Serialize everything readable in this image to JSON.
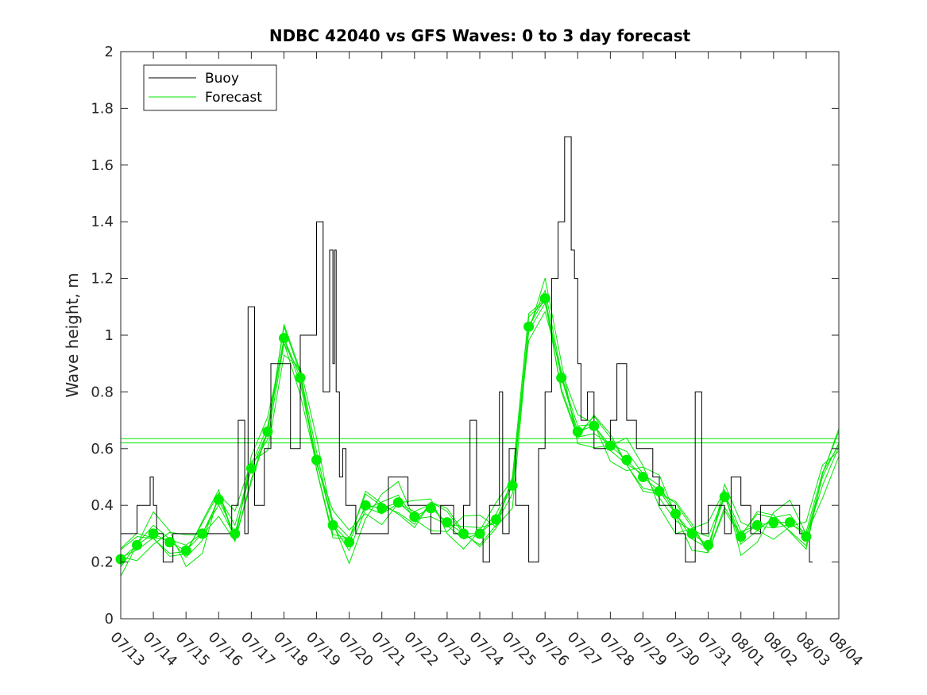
{
  "chart_data": {
    "type": "line",
    "title": "NDBC 42040 vs GFS Waves: 0 to 3 day forecast",
    "xlabel": "",
    "ylabel": "Wave height, m",
    "x_ticks": [
      "07/13",
      "07/14",
      "07/15",
      "07/16",
      "07/17",
      "07/18",
      "07/19",
      "07/20",
      "07/21",
      "07/22",
      "07/23",
      "07/24",
      "07/25",
      "07/26",
      "07/27",
      "07/28",
      "07/29",
      "07/30",
      "07/31",
      "08/01",
      "08/02",
      "08/03",
      "08/04"
    ],
    "xlim": [
      "07/13",
      "08/04"
    ],
    "ylim": [
      0,
      2
    ],
    "y_ticks": [
      0,
      0.2,
      0.4,
      0.6,
      0.8,
      1,
      1.2,
      1.4,
      1.6,
      1.8,
      2
    ],
    "legend": {
      "position": "top-left",
      "entries": [
        "Buoy",
        "Forecast"
      ]
    },
    "colors": {
      "buoy": "#000000",
      "forecast": "#00e600",
      "dots": "#00ee00",
      "axis": "#262626"
    },
    "series": [
      {
        "name": "Buoy",
        "x_days": [
          0,
          0.5,
          0.9,
          1.0,
          1.1,
          1.2,
          1.3,
          1.6,
          2.0,
          2.5,
          2.9,
          3.1,
          3.4,
          3.6,
          3.8,
          3.9,
          4.1,
          4.4,
          4.6,
          5.2,
          5.5,
          6.0,
          6.2,
          6.4,
          6.5,
          6.55,
          6.6,
          6.7,
          6.8,
          6.9,
          7.0,
          7.2,
          7.5,
          7.8,
          8.2,
          8.5,
          8.8,
          9.0,
          9.5,
          9.8,
          10.2,
          10.5,
          10.7,
          10.9,
          11.1,
          11.3,
          11.6,
          11.7,
          11.9,
          12.1,
          12.5,
          12.8,
          13.0,
          13.2,
          13.4,
          13.6,
          13.8,
          13.9,
          14.0,
          14.1,
          14.3,
          14.5,
          14.8,
          15.0,
          15.2,
          15.5,
          15.8,
          16.1,
          16.3,
          16.5,
          16.8,
          17.0,
          17.3,
          17.6,
          17.8,
          18.0,
          18.2,
          18.5,
          18.7,
          19.0,
          19.3,
          19.6,
          20.0,
          20.4,
          20.8,
          21.0,
          21.1,
          21.2
        ],
        "values": [
          0.3,
          0.4,
          0.5,
          0.4,
          0.3,
          0.3,
          0.2,
          0.3,
          0.3,
          0.3,
          0.3,
          0.3,
          0.4,
          0.7,
          0.3,
          1.1,
          0.4,
          0.6,
          0.9,
          0.6,
          1.0,
          1.4,
          0.8,
          1.3,
          0.9,
          1.3,
          0.8,
          0.5,
          0.6,
          0.4,
          0.4,
          0.3,
          0.3,
          0.3,
          0.5,
          0.5,
          0.4,
          0.4,
          0.3,
          0.4,
          0.3,
          0.4,
          0.7,
          0.3,
          0.2,
          0.4,
          0.8,
          0.3,
          0.6,
          0.4,
          0.2,
          0.6,
          0.8,
          1.2,
          1.4,
          1.7,
          1.3,
          1.2,
          0.9,
          0.7,
          0.8,
          0.6,
          0.6,
          0.7,
          0.9,
          0.7,
          0.6,
          0.6,
          0.5,
          0.4,
          0.4,
          0.3,
          0.2,
          0.8,
          0.3,
          0.4,
          0.4,
          0.3,
          0.5,
          0.4,
          0.3,
          0.4,
          0.4,
          0.4,
          0.3,
          0.3,
          0.2,
          0.2
        ]
      },
      {
        "name": "Forecast",
        "x_days": [
          0,
          0.5,
          1.0,
          1.5,
          2.0,
          2.5,
          3.0,
          3.5,
          4.0,
          4.5,
          5.0,
          5.5,
          6.0,
          6.5,
          7.0,
          7.5,
          8.0,
          8.5,
          9.0,
          9.5,
          10.0,
          10.5,
          11.0,
          11.5,
          12.0,
          12.5,
          13.0,
          13.5,
          14.0,
          14.5,
          15.0,
          15.5,
          16.0,
          16.5,
          17.0,
          17.5,
          18.0,
          18.5,
          19.0,
          19.5,
          20.0,
          20.5,
          21.0,
          21.5,
          22.0
        ],
        "values": [
          0.21,
          0.26,
          0.3,
          0.27,
          0.24,
          0.3,
          0.42,
          0.3,
          0.53,
          0.66,
          0.99,
          0.85,
          0.56,
          0.33,
          0.27,
          0.4,
          0.39,
          0.41,
          0.36,
          0.39,
          0.34,
          0.3,
          0.3,
          0.35,
          0.47,
          1.03,
          1.13,
          0.85,
          0.66,
          0.68,
          0.61,
          0.56,
          0.5,
          0.45,
          0.37,
          0.3,
          0.26,
          0.43,
          0.29,
          0.33,
          0.34,
          0.34,
          0.29,
          0.5,
          0.62
        ]
      }
    ],
    "forecast_analysis_points": {
      "x_days": [
        0,
        0.5,
        1.0,
        1.5,
        2.0,
        2.5,
        3.0,
        3.5,
        4.0,
        4.5,
        5.0,
        5.5,
        6.0,
        6.5,
        7.0,
        7.5,
        8.0,
        8.5,
        9.0,
        9.5,
        10.0,
        10.5,
        11.0,
        11.5,
        12.0,
        12.5,
        13.0,
        13.5,
        14.0,
        14.5,
        15.0,
        15.5,
        16.0,
        16.5,
        17.0,
        17.5,
        18.0,
        18.5,
        19.0,
        19.5,
        20.0,
        20.5,
        21.0
      ],
      "values": [
        0.21,
        0.26,
        0.3,
        0.27,
        0.24,
        0.3,
        0.42,
        0.3,
        0.53,
        0.66,
        0.99,
        0.85,
        0.56,
        0.33,
        0.27,
        0.4,
        0.39,
        0.41,
        0.36,
        0.39,
        0.34,
        0.3,
        0.3,
        0.35,
        0.47,
        1.03,
        1.13,
        0.85,
        0.66,
        0.68,
        0.61,
        0.56,
        0.5,
        0.45,
        0.37,
        0.3,
        0.26,
        0.43,
        0.29,
        0.33,
        0.34,
        0.34,
        0.29
      ]
    },
    "horizontal_lines": [
      0.62,
      0.635
    ]
  }
}
